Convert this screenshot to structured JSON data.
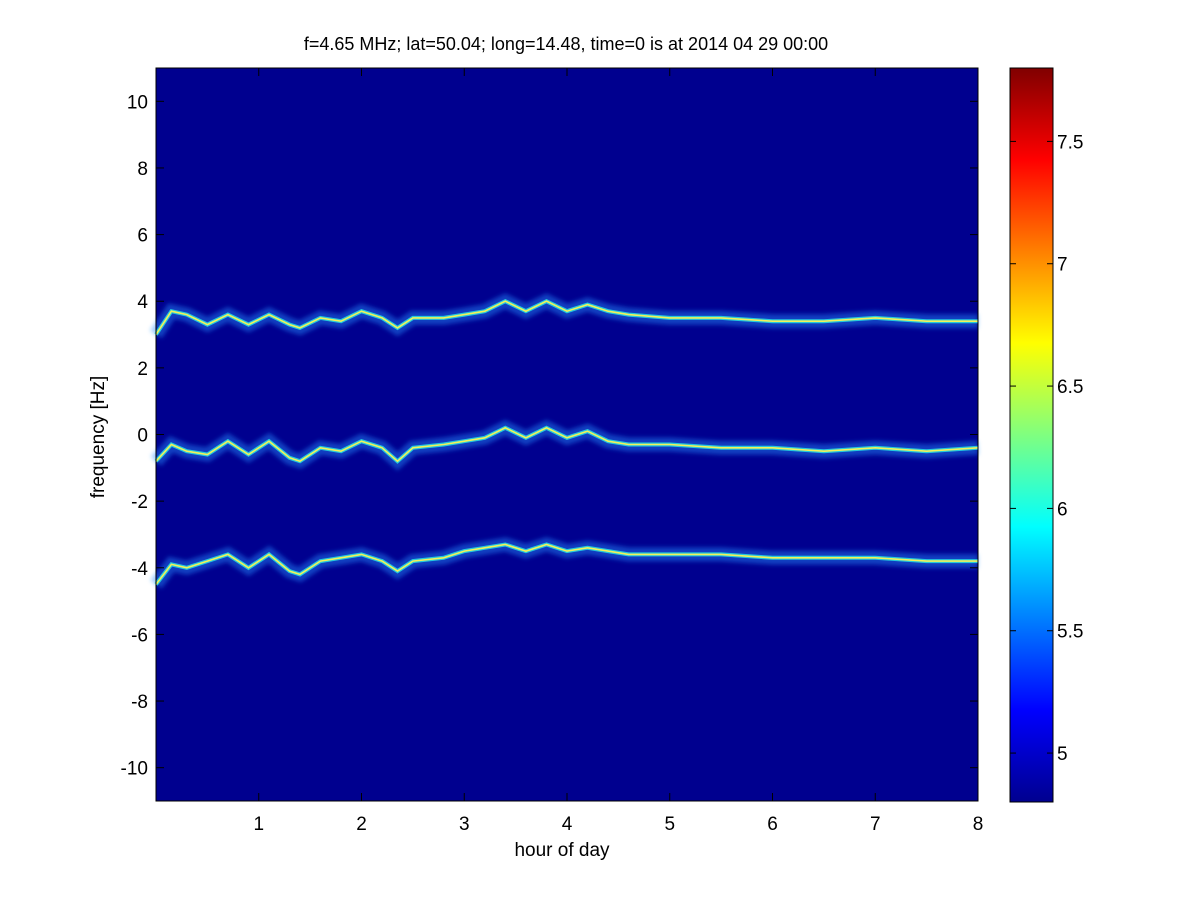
{
  "chart_data": {
    "type": "heatmap",
    "title": "f=4.65 MHz;  lat=50.04; long=14.48, time=0 is at 2014 04 29 00:00",
    "xlabel": "hour of day",
    "ylabel": "frequency [Hz]",
    "xlim": [
      0,
      8
    ],
    "ylim": [
      -11,
      11
    ],
    "x_ticks": [
      1,
      2,
      3,
      4,
      5,
      6,
      7,
      8
    ],
    "y_ticks": [
      -10,
      -8,
      -6,
      -4,
      -2,
      0,
      2,
      4,
      6,
      8,
      10
    ],
    "colorbar": {
      "range": [
        4.8,
        7.8
      ],
      "ticks": [
        5,
        5.5,
        6,
        6.5,
        7,
        7.5
      ],
      "colormap": "jet"
    },
    "background_color": "#00008f",
    "series": [
      {
        "x": [
          0,
          0.15,
          0.3,
          0.5,
          0.7,
          0.9,
          1.1,
          1.3,
          1.4,
          1.6,
          1.8,
          2.0,
          2.2,
          2.35,
          2.5,
          2.8,
          3.0,
          3.2,
          3.4,
          3.6,
          3.8,
          4.0,
          4.2,
          4.4,
          4.6,
          5.0,
          5.5,
          6.0,
          6.5,
          7.0,
          7.5,
          8.0
        ],
        "y": [
          3.0,
          3.7,
          3.6,
          3.3,
          3.6,
          3.3,
          3.6,
          3.3,
          3.2,
          3.5,
          3.4,
          3.7,
          3.5,
          3.2,
          3.5,
          3.5,
          3.6,
          3.7,
          4.0,
          3.7,
          4.0,
          3.7,
          3.9,
          3.7,
          3.6,
          3.5,
          3.5,
          3.4,
          3.4,
          3.5,
          3.4,
          3.4
        ]
      },
      {
        "x": [
          0,
          0.15,
          0.3,
          0.5,
          0.7,
          0.9,
          1.1,
          1.3,
          1.4,
          1.6,
          1.8,
          2.0,
          2.2,
          2.35,
          2.5,
          2.8,
          3.0,
          3.2,
          3.4,
          3.6,
          3.8,
          4.0,
          4.2,
          4.4,
          4.6,
          5.0,
          5.5,
          6.0,
          6.5,
          7.0,
          7.5,
          8.0
        ],
        "y": [
          -0.8,
          -0.3,
          -0.5,
          -0.6,
          -0.2,
          -0.6,
          -0.2,
          -0.7,
          -0.8,
          -0.4,
          -0.5,
          -0.2,
          -0.4,
          -0.8,
          -0.4,
          -0.3,
          -0.2,
          -0.1,
          0.2,
          -0.1,
          0.2,
          -0.1,
          0.1,
          -0.2,
          -0.3,
          -0.3,
          -0.4,
          -0.4,
          -0.5,
          -0.4,
          -0.5,
          -0.4
        ]
      },
      {
        "x": [
          0,
          0.15,
          0.3,
          0.5,
          0.7,
          0.9,
          1.1,
          1.3,
          1.4,
          1.6,
          1.8,
          2.0,
          2.2,
          2.35,
          2.5,
          2.8,
          3.0,
          3.2,
          3.4,
          3.6,
          3.8,
          4.0,
          4.2,
          4.4,
          4.6,
          5.0,
          5.5,
          6.0,
          6.5,
          7.0,
          7.5,
          8.0
        ],
        "y": [
          -4.5,
          -3.9,
          -4.0,
          -3.8,
          -3.6,
          -4.0,
          -3.6,
          -4.1,
          -4.2,
          -3.8,
          -3.7,
          -3.6,
          -3.8,
          -4.1,
          -3.8,
          -3.7,
          -3.5,
          -3.4,
          -3.3,
          -3.5,
          -3.3,
          -3.5,
          -3.4,
          -3.5,
          -3.6,
          -3.6,
          -3.6,
          -3.7,
          -3.7,
          -3.7,
          -3.8,
          -3.8
        ]
      }
    ]
  }
}
